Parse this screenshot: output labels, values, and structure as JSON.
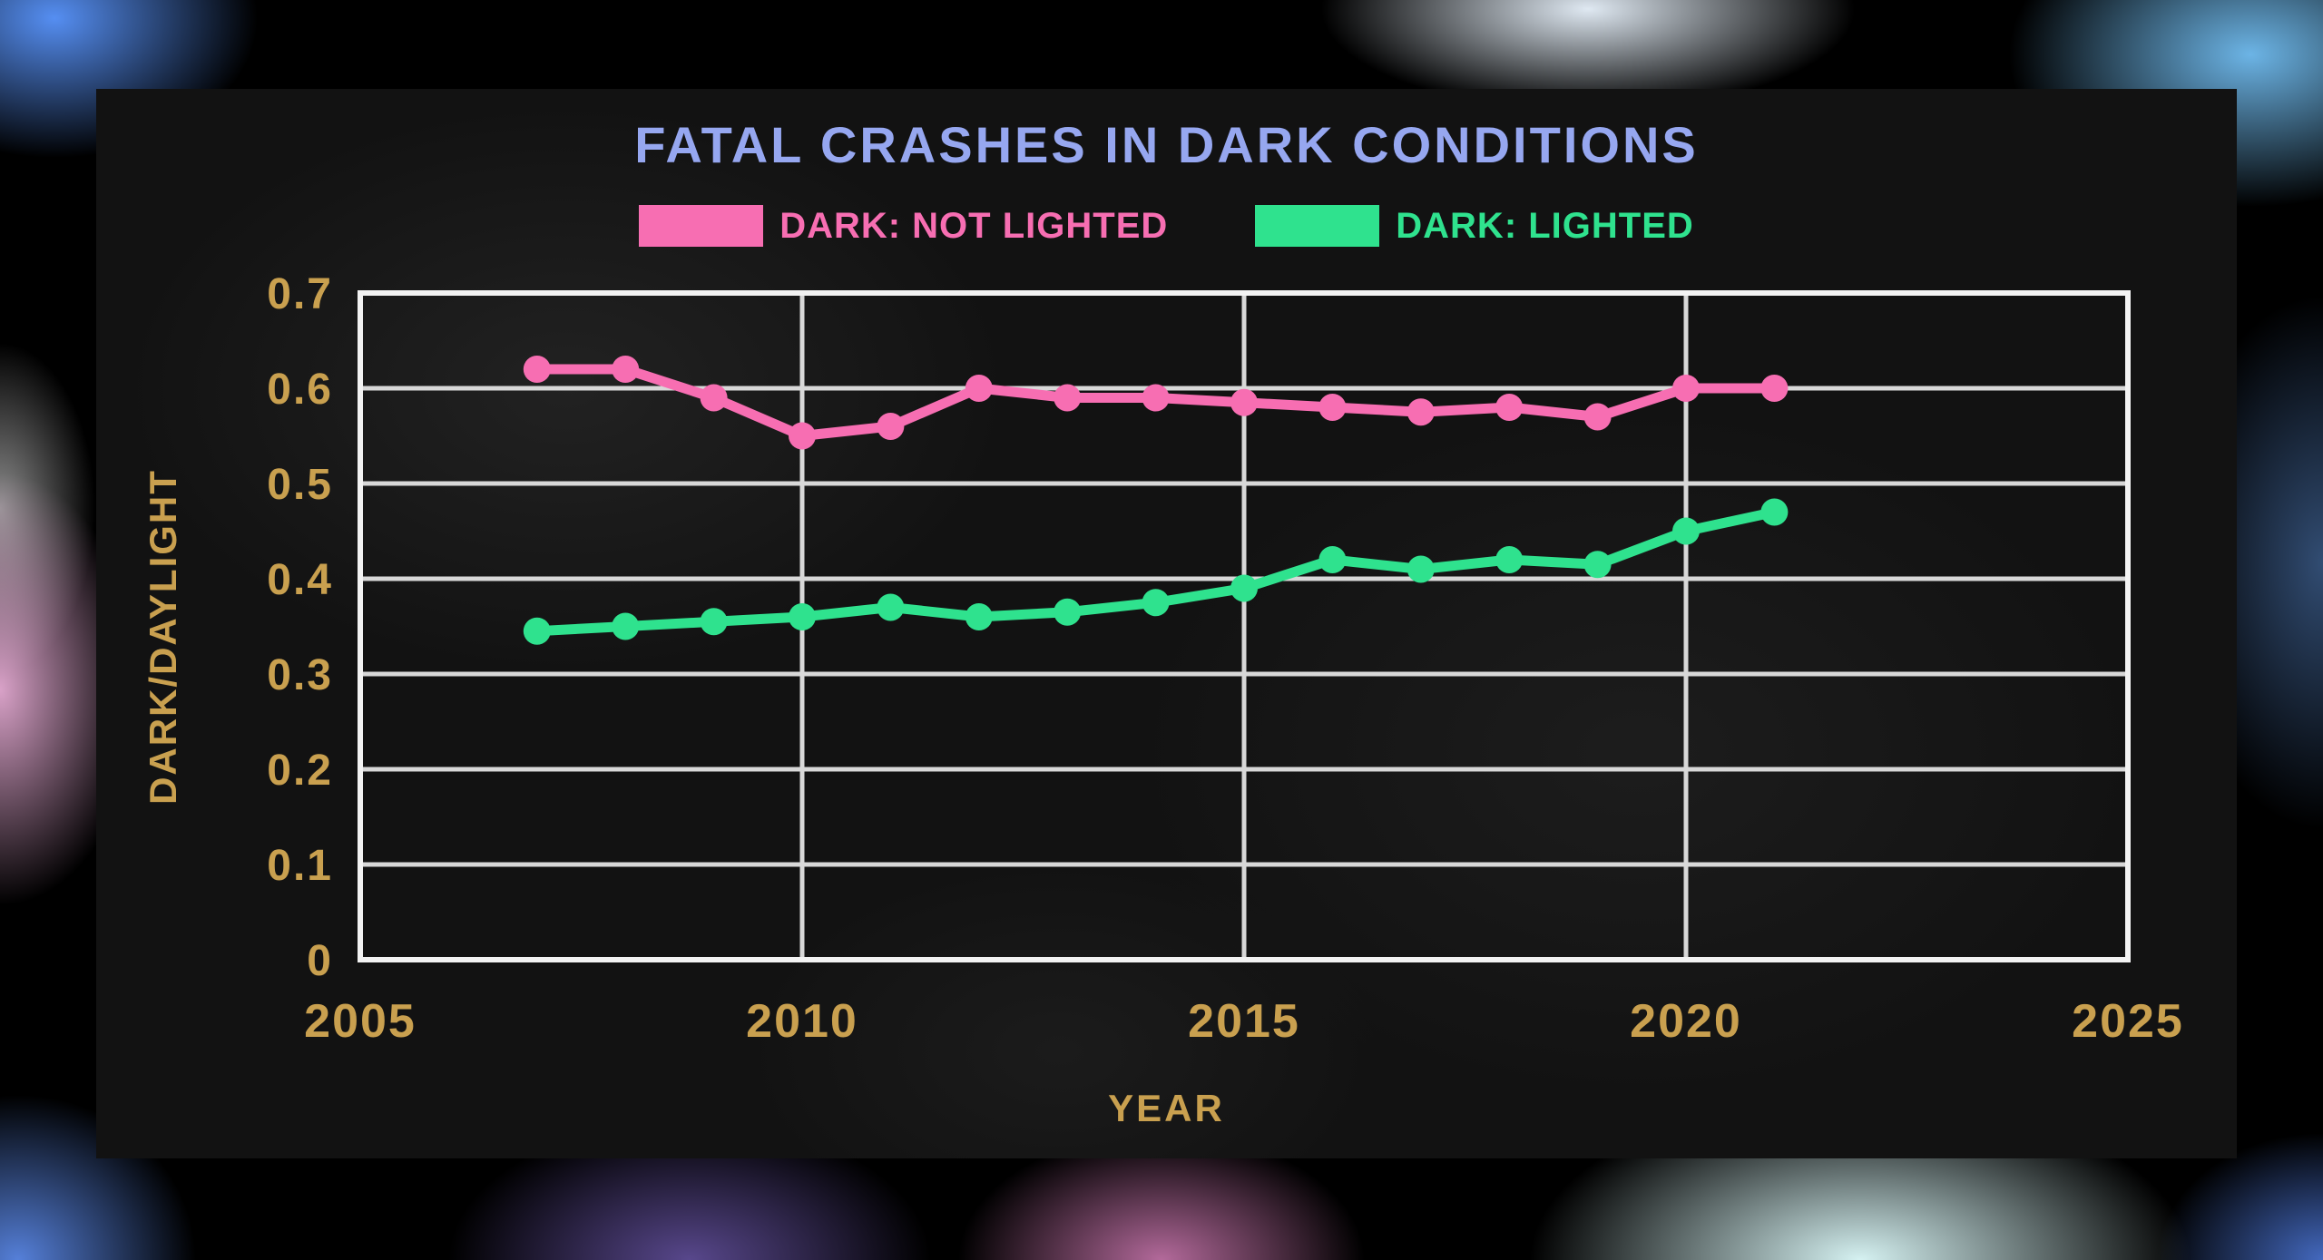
{
  "chart_data": {
    "type": "line",
    "title": "FATAL CRASHES IN DARK CONDITIONS",
    "xlabel": "YEAR",
    "ylabel": "DARK/DAYLIGHT",
    "xlim": [
      2005,
      2025
    ],
    "ylim": [
      0,
      0.7
    ],
    "x_ticks": [
      2005,
      2010,
      2015,
      2020,
      2025
    ],
    "y_ticks": [
      0,
      0.1,
      0.2,
      0.3,
      0.4,
      0.5,
      0.6,
      0.7
    ],
    "grid": true,
    "legend_position": "top-center",
    "x": [
      2007,
      2008,
      2009,
      2010,
      2011,
      2012,
      2013,
      2014,
      2015,
      2016,
      2017,
      2018,
      2019,
      2020,
      2021
    ],
    "series": [
      {
        "name": "DARK: NOT LIGHTED",
        "color": "#f76eb2",
        "values": [
          0.62,
          0.62,
          0.59,
          0.55,
          0.56,
          0.6,
          0.59,
          0.59,
          0.585,
          0.58,
          0.575,
          0.58,
          0.57,
          0.6,
          0.6
        ]
      },
      {
        "name": "DARK: LIGHTED",
        "color": "#2fe28e",
        "values": [
          0.345,
          0.35,
          0.355,
          0.36,
          0.37,
          0.36,
          0.365,
          0.375,
          0.39,
          0.42,
          0.41,
          0.42,
          0.415,
          0.45,
          0.47
        ]
      }
    ],
    "colors": {
      "title": "#96a7f0",
      "axis_text": "#c9a04f",
      "grid": "#d8d8d8",
      "plot_border": "#f2f2f2",
      "panel_bg": "#121212"
    }
  }
}
